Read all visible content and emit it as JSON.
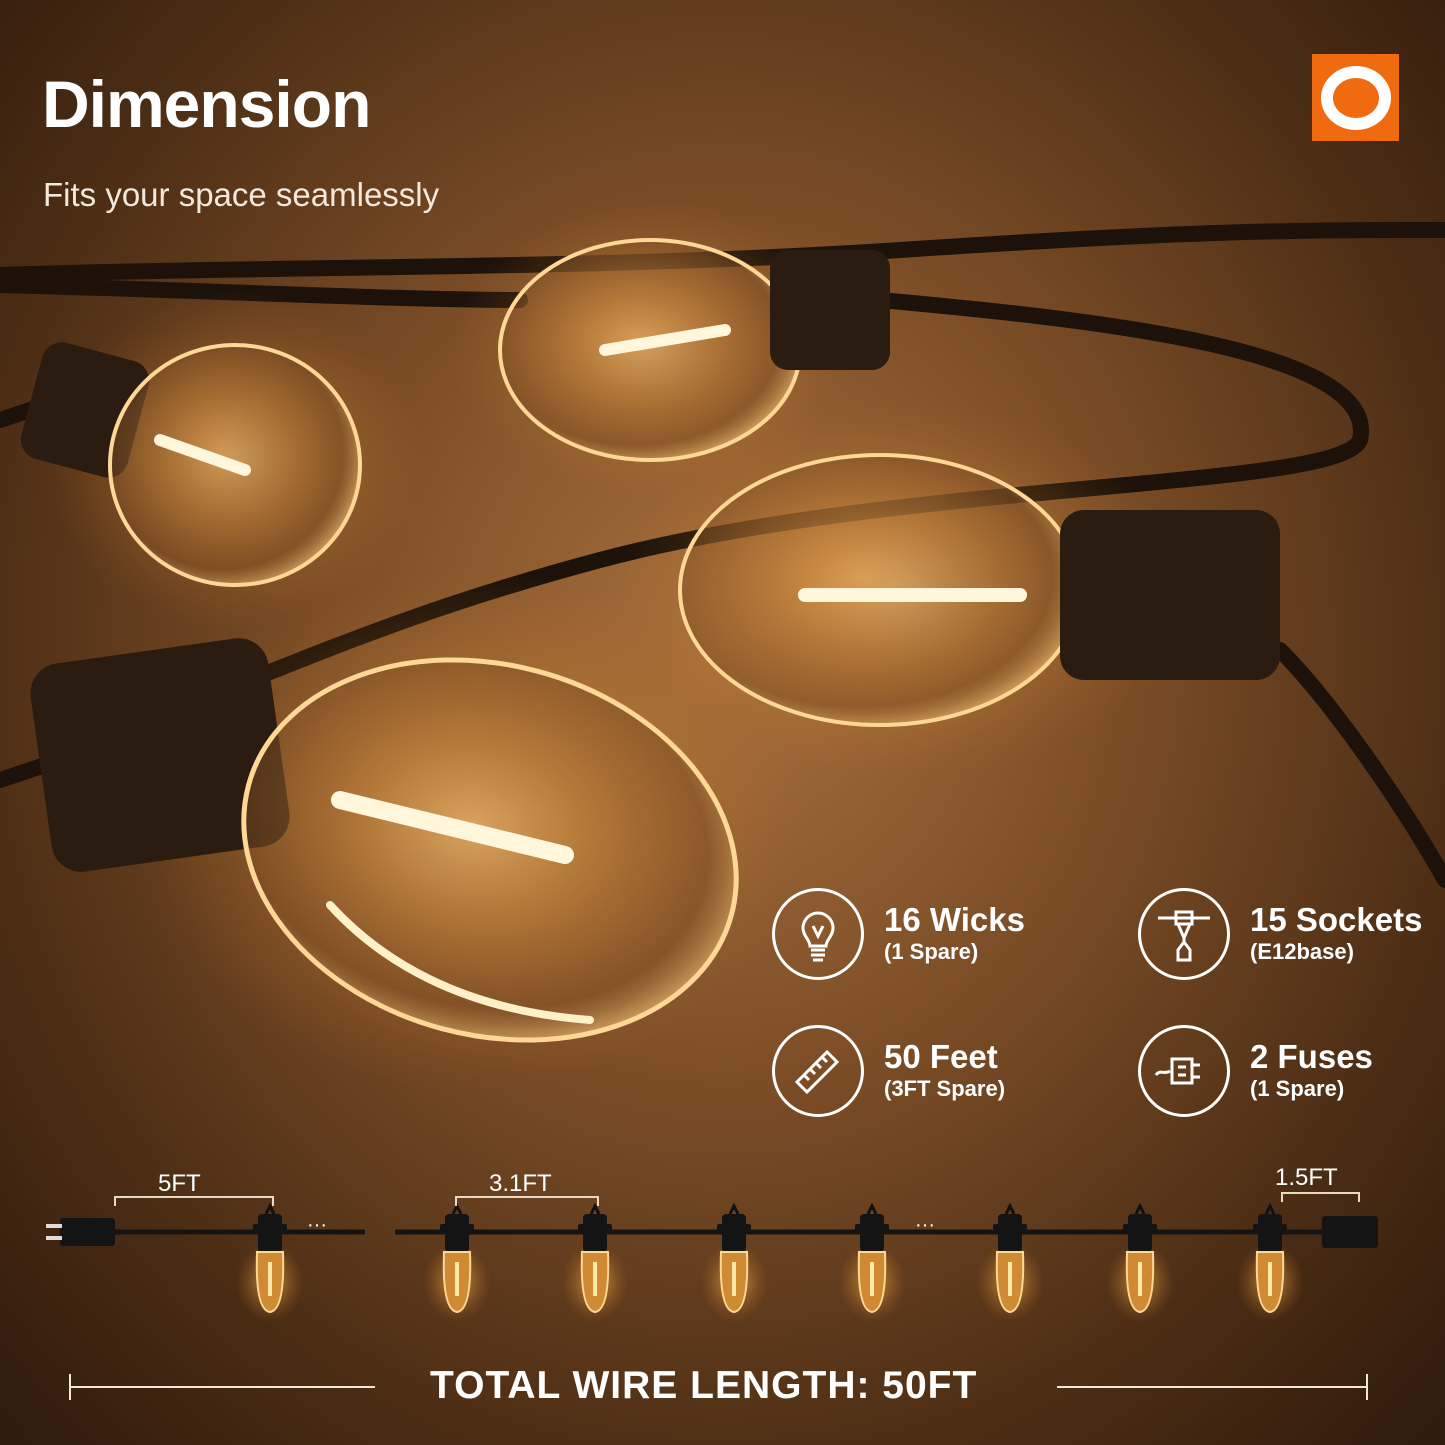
{
  "header": {
    "title": "Dimension",
    "subtitle": "Fits your space seamlessly"
  },
  "brand": {
    "logo_color": "#f06a10"
  },
  "specs": [
    {
      "icon": "light-bulb-icon",
      "main": "16 Wicks",
      "sub": "(1 Spare)"
    },
    {
      "icon": "socket-icon",
      "main": "15 Sockets",
      "sub": "(E12base)"
    },
    {
      "icon": "ruler-icon",
      "main": "50 Feet",
      "sub": "(3FT Spare)"
    },
    {
      "icon": "fuse-plug-icon",
      "main": "2 Fuses",
      "sub": "(1 Spare)"
    }
  ],
  "diagram": {
    "lead_length": "5FT",
    "spacing": "3.1FT",
    "tail_length": "1.5FT",
    "ellipsis": "···",
    "total": "TOTAL WIRE LENGTH: 50FT"
  }
}
